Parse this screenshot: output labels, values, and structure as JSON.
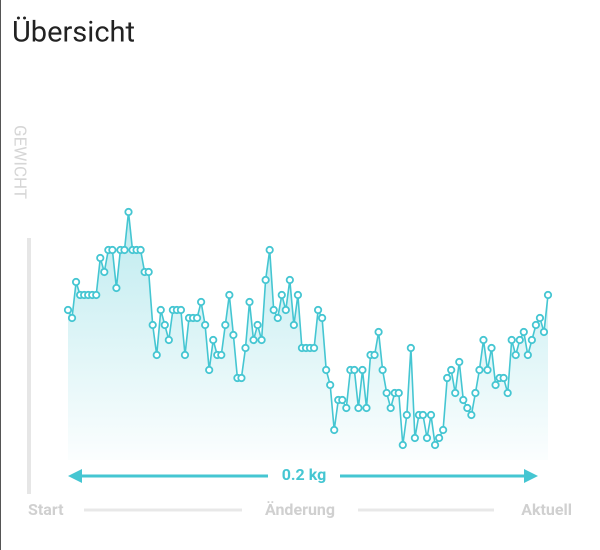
{
  "chart_data": {
    "type": "line",
    "title": "Übersicht",
    "y_label": "GEWICHT",
    "annotation": "0.2 kg",
    "start_label": "Start",
    "middle_label": "Änderung",
    "end_label": "Aktuell",
    "color": "#45c6d2",
    "ylim": [
      0,
      260
    ],
    "values": [
      150,
      142,
      178,
      165,
      165,
      165,
      165,
      165,
      202,
      188,
      210,
      210,
      172,
      210,
      210,
      248,
      210,
      210,
      210,
      188,
      188,
      135,
      105,
      150,
      135,
      120,
      150,
      150,
      150,
      105,
      142,
      142,
      142,
      158,
      135,
      90,
      120,
      105,
      105,
      135,
      165,
      125,
      82,
      82,
      112,
      158,
      120,
      135,
      120,
      180,
      210,
      150,
      142,
      165,
      150,
      180,
      135,
      165,
      112,
      112,
      112,
      112,
      150,
      142,
      90,
      75,
      30,
      60,
      60,
      52,
      90,
      90,
      52,
      90,
      52,
      105,
      105,
      128,
      90,
      67,
      52,
      67,
      67,
      15,
      45,
      112,
      22,
      45,
      45,
      22,
      45,
      15,
      22,
      30,
      82,
      90,
      67,
      98,
      60,
      52,
      45,
      67,
      90,
      120,
      90,
      112,
      75,
      82,
      82,
      67,
      120,
      105,
      120,
      128,
      105,
      120,
      135,
      142,
      128,
      165
    ]
  }
}
